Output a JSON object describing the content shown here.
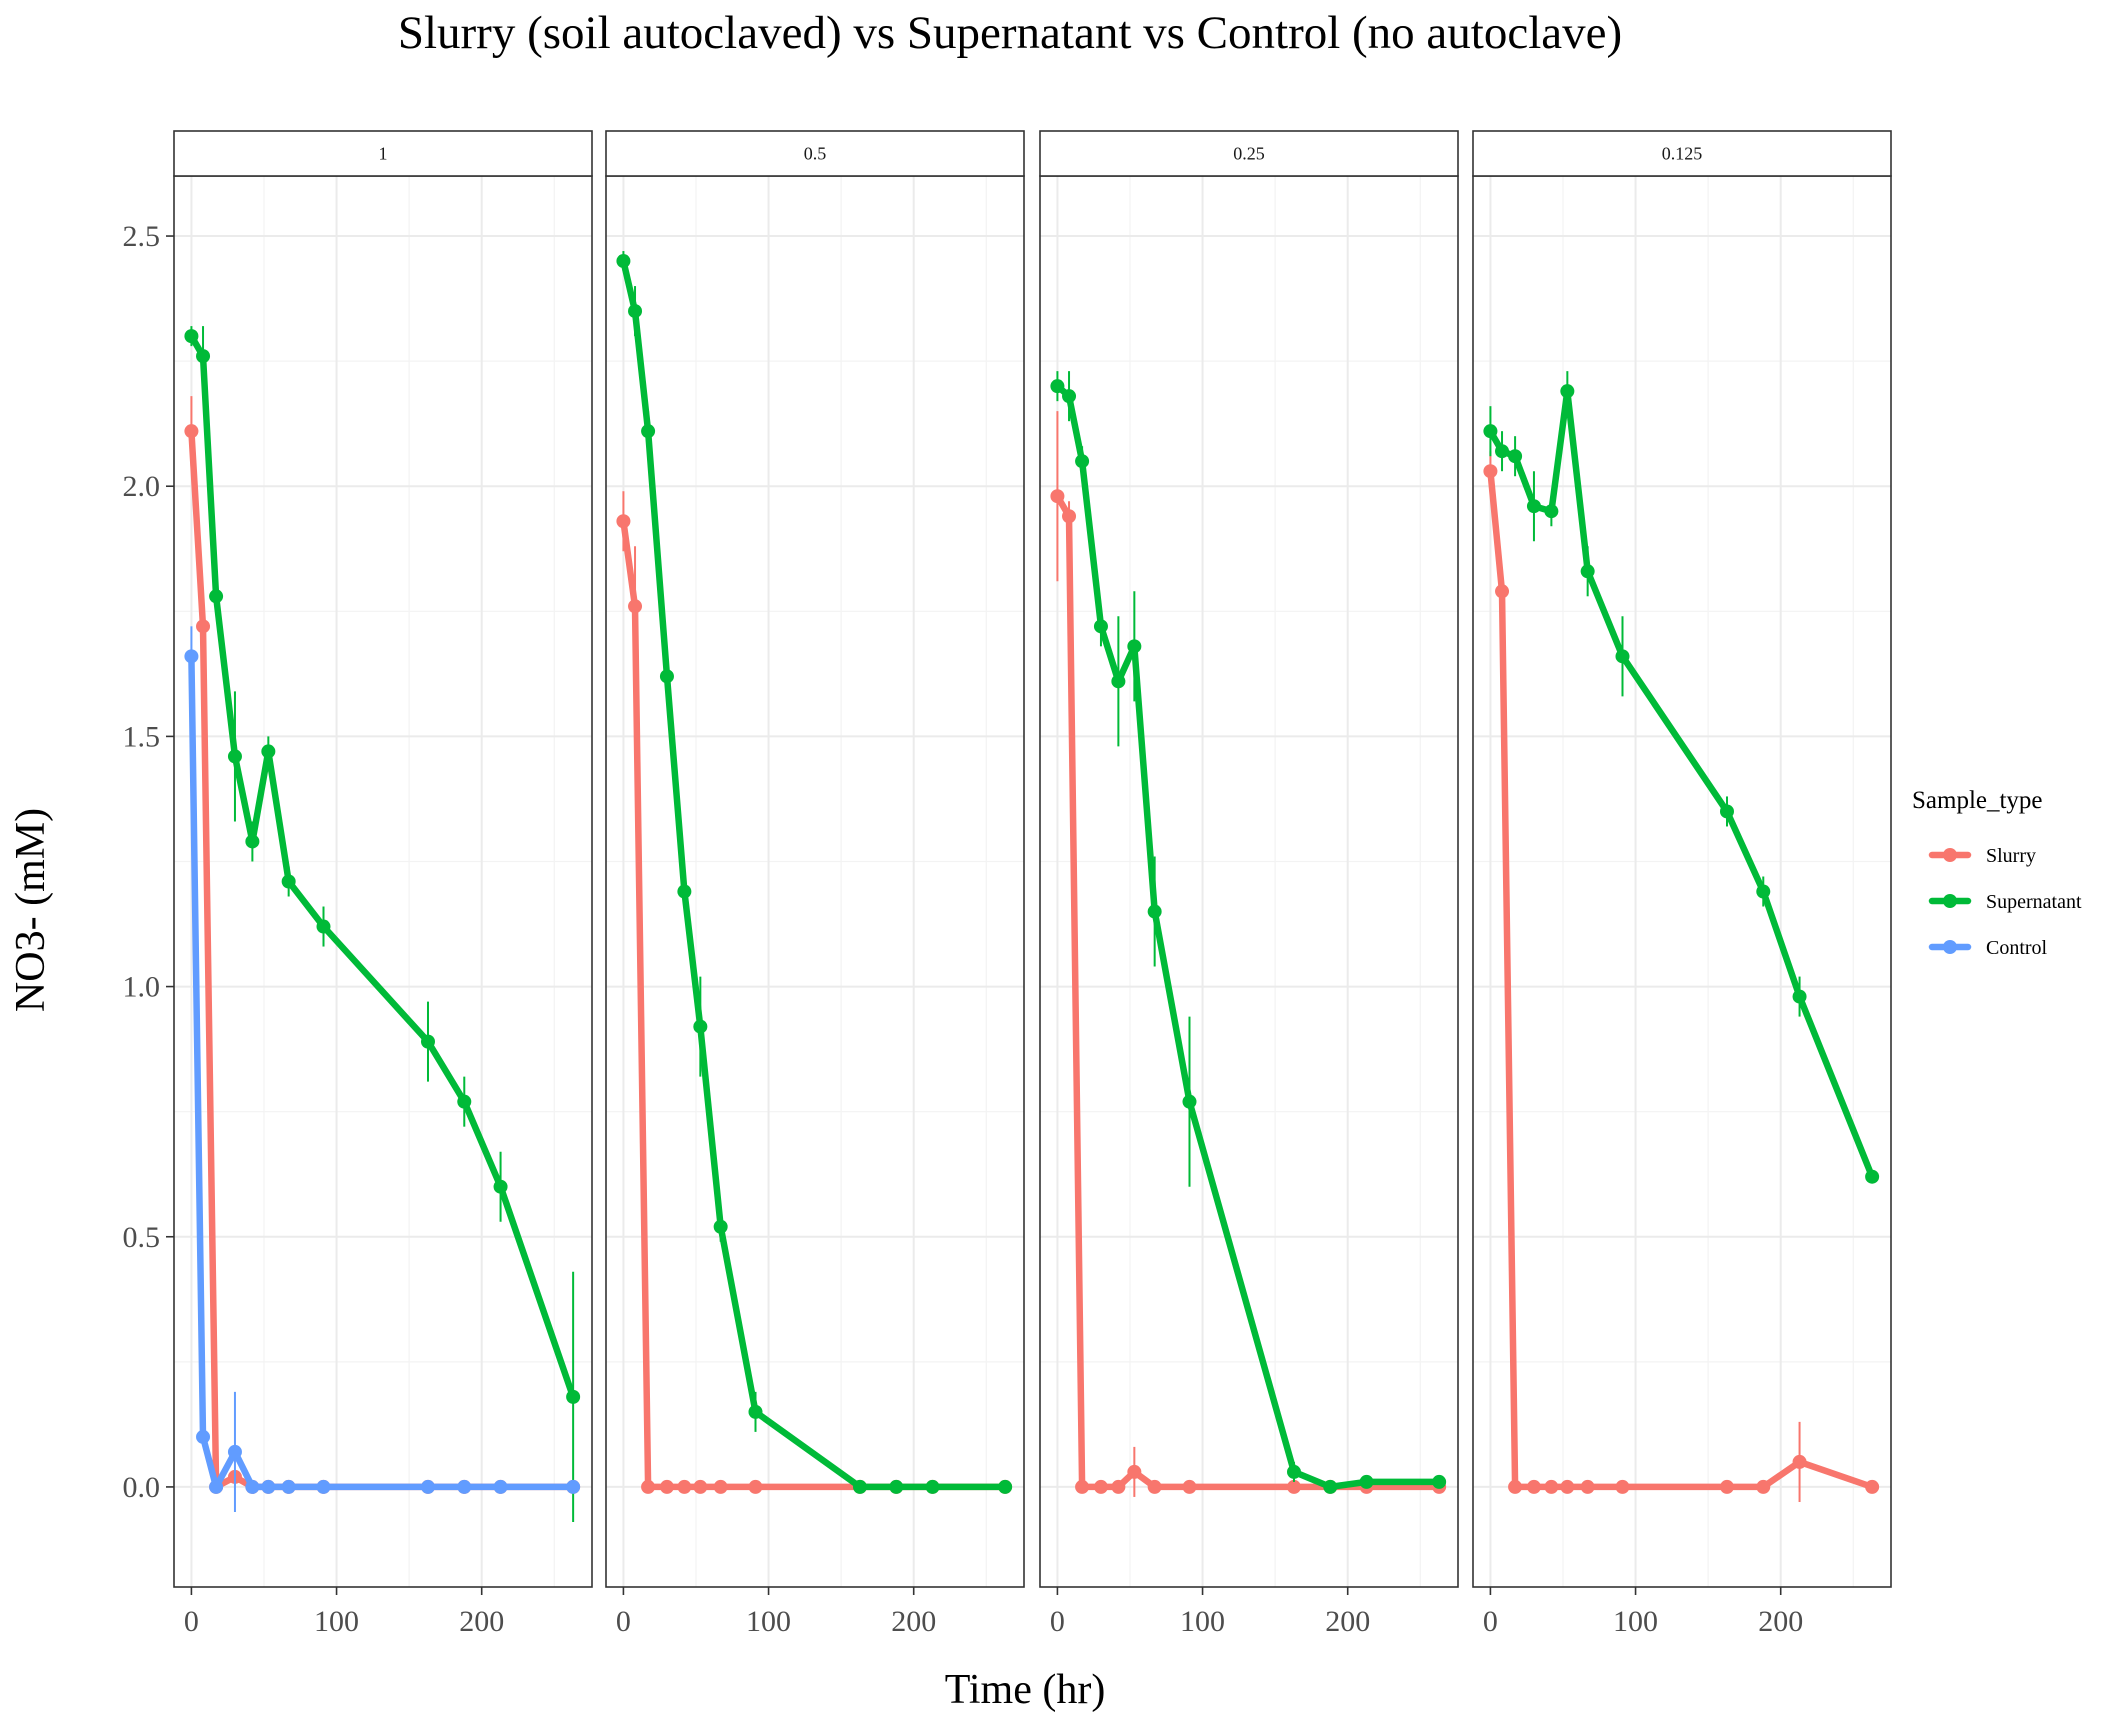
{
  "chart_data": {
    "type": "line",
    "title": "Slurry (soil autoclaved) vs Supernatant vs Control (no autoclave)",
    "xlabel": "Time (hr)",
    "ylabel": "NO3- (mM)",
    "xlim": [
      -12,
      276
    ],
    "ylim": [
      -0.2,
      2.62
    ],
    "x_ticks": [
      0,
      100,
      200
    ],
    "y_ticks": [
      0.0,
      0.5,
      1.0,
      1.5,
      2.0,
      2.5
    ],
    "x_tick_labels": [
      "0",
      "100",
      "200"
    ],
    "y_tick_labels": [
      "0.0",
      "0.5",
      "1.0",
      "1.5",
      "2.0",
      "2.5"
    ],
    "grid": true,
    "legend": {
      "title": "Sample_type",
      "position": "right",
      "entries": [
        "Slurry",
        "Supernatant",
        "Control"
      ]
    },
    "series_colors": {
      "Slurry": "#F8766D",
      "Supernatant": "#00BA38",
      "Control": "#619CFF"
    },
    "panels": [
      {
        "label": "1",
        "series": [
          {
            "name": "Slurry",
            "x": [
              0,
              8,
              17,
              30,
              42,
              53,
              67,
              91,
              163,
              188,
              213,
              263
            ],
            "y": [
              2.11,
              1.72,
              0.0,
              0.02,
              0.0,
              0.0,
              0.0,
              0.0,
              0.0,
              0.0,
              0.0,
              0.0
            ],
            "err": [
              0.07,
              0.05,
              0.0,
              0.01,
              0.0,
              0.0,
              0.0,
              0.0,
              0.0,
              0.0,
              0.0,
              0.0
            ]
          },
          {
            "name": "Supernatant",
            "x": [
              0,
              8,
              17,
              30,
              42,
              53,
              67,
              91,
              163,
              188,
              213,
              263
            ],
            "y": [
              2.3,
              2.26,
              1.78,
              1.46,
              1.29,
              1.47,
              1.21,
              1.12,
              0.89,
              0.77,
              0.6,
              0.18
            ],
            "err": [
              0.02,
              0.06,
              0.03,
              0.13,
              0.04,
              0.03,
              0.03,
              0.04,
              0.08,
              0.05,
              0.07,
              0.25
            ]
          },
          {
            "name": "Control",
            "x": [
              0,
              8,
              17,
              30,
              42,
              53,
              67,
              91,
              163,
              188,
              213,
              263
            ],
            "y": [
              1.66,
              0.1,
              0.0,
              0.07,
              0.0,
              0.0,
              0.0,
              0.0,
              0.0,
              0.0,
              0.0,
              0.0
            ],
            "err": [
              0.06,
              0.0,
              0.0,
              0.12,
              0.0,
              0.0,
              0.0,
              0.0,
              0.0,
              0.0,
              0.0,
              0.0
            ]
          }
        ]
      },
      {
        "label": "0.5",
        "series": [
          {
            "name": "Slurry",
            "x": [
              0,
              8,
              17,
              30,
              42,
              53,
              67,
              91,
              163,
              188,
              213,
              263
            ],
            "y": [
              1.93,
              1.76,
              0.0,
              0.0,
              0.0,
              0.0,
              0.0,
              0.0,
              0.0,
              0.0,
              0.0,
              0.0
            ],
            "err": [
              0.06,
              0.12,
              0.0,
              0.0,
              0.0,
              0.0,
              0.0,
              0.0,
              0.0,
              0.0,
              0.0,
              0.0
            ]
          },
          {
            "name": "Supernatant",
            "x": [
              0,
              8,
              17,
              30,
              42,
              53,
              67,
              91,
              163,
              188,
              213,
              263
            ],
            "y": [
              2.45,
              2.35,
              2.11,
              1.62,
              1.19,
              0.92,
              0.52,
              0.15,
              0.0,
              0.0,
              0.0,
              0.0
            ],
            "err": [
              0.02,
              0.05,
              0.04,
              0.03,
              0.03,
              0.1,
              0.03,
              0.04,
              0.0,
              0.0,
              0.0,
              0.0
            ]
          }
        ]
      },
      {
        "label": "0.25",
        "series": [
          {
            "name": "Slurry",
            "x": [
              0,
              8,
              17,
              30,
              42,
              53,
              67,
              91,
              163,
              188,
              213,
              263
            ],
            "y": [
              1.98,
              1.94,
              0.0,
              0.0,
              0.0,
              0.03,
              0.0,
              0.0,
              0.0,
              0.0,
              0.0,
              0.0
            ],
            "err": [
              0.17,
              0.03,
              0.0,
              0.0,
              0.0,
              0.05,
              0.0,
              0.0,
              0.0,
              0.0,
              0.0,
              0.0
            ]
          },
          {
            "name": "Supernatant",
            "x": [
              0,
              8,
              17,
              30,
              42,
              53,
              67,
              91,
              163,
              188,
              213,
              263
            ],
            "y": [
              2.2,
              2.18,
              2.05,
              1.72,
              1.61,
              1.68,
              1.15,
              0.77,
              0.03,
              0.0,
              0.01,
              0.01
            ],
            "err": [
              0.03,
              0.05,
              0.03,
              0.04,
              0.13,
              0.11,
              0.11,
              0.17,
              0.02,
              0.0,
              0.01,
              0.01
            ]
          }
        ]
      },
      {
        "label": "0.125",
        "series": [
          {
            "name": "Slurry",
            "x": [
              0,
              8,
              17,
              30,
              42,
              53,
              67,
              91,
              163,
              188,
              213,
              263
            ],
            "y": [
              2.03,
              1.79,
              0.0,
              0.0,
              0.0,
              0.0,
              0.0,
              0.0,
              0.0,
              0.0,
              0.05,
              0.0
            ],
            "err": [
              0.04,
              0.02,
              0.0,
              0.0,
              0.0,
              0.0,
              0.0,
              0.0,
              0.0,
              0.0,
              0.08,
              0.0
            ]
          },
          {
            "name": "Supernatant",
            "x": [
              0,
              8,
              17,
              30,
              42,
              53,
              67,
              91,
              163,
              188,
              213,
              263
            ],
            "y": [
              2.11,
              2.07,
              2.06,
              1.96,
              1.95,
              2.19,
              1.83,
              1.66,
              1.35,
              1.19,
              0.98,
              0.62
            ],
            "err": [
              0.05,
              0.04,
              0.04,
              0.07,
              0.03,
              0.04,
              0.05,
              0.08,
              0.03,
              0.03,
              0.04,
              0.01
            ]
          }
        ]
      }
    ]
  }
}
